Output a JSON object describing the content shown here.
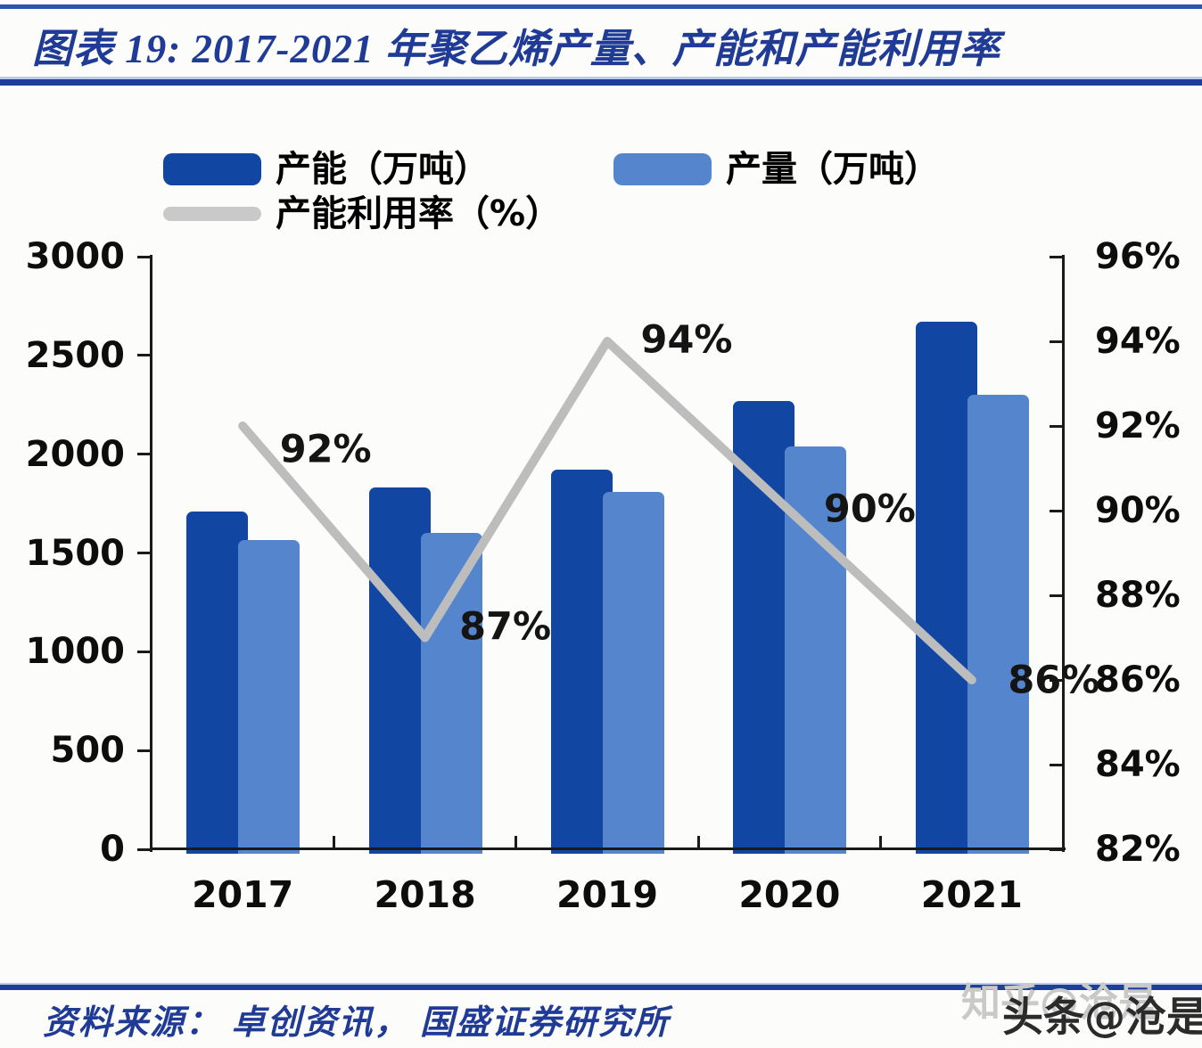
{
  "title": "图表 19:  2017-2021 年聚乙烯产量、产能和产能利用率",
  "source": "资料来源：  卓创资讯，  国盛证券研究所",
  "watermark": {
    "back": "知乎@沧是",
    "front": "头条@沧是"
  },
  "colors": {
    "capacity_bar": "#1246a3",
    "production_bar": "#5586cd",
    "utilization_line": "#bdbdbd",
    "heading_blue": "#1f3b96",
    "divider_blue": "#1e3f98",
    "axis_black": "#1a1a1a"
  },
  "chart_data": {
    "type": "bar",
    "subtype": "dual-axis bar + line combo",
    "categories": [
      "2017",
      "2018",
      "2019",
      "2020",
      "2021"
    ],
    "series": [
      {
        "name": "产能（万吨）",
        "type": "bar",
        "axis": "left",
        "color": "#1246a3",
        "values": [
          1710,
          1830,
          1920,
          2270,
          2670
        ]
      },
      {
        "name": "产量（万吨）",
        "type": "bar",
        "axis": "left",
        "color": "#5586cd",
        "values": [
          1565,
          1600,
          1810,
          2040,
          2300
        ]
      },
      {
        "name": "产能利用率（%）",
        "type": "line",
        "axis": "right",
        "color": "#bdbdbd",
        "values": [
          92,
          87,
          94,
          90,
          86
        ],
        "point_labels": [
          "92%",
          "87%",
          "94%",
          "90%",
          "86%"
        ]
      }
    ],
    "left_axis": {
      "min": 0,
      "max": 3000,
      "step": 500,
      "tick_labels": [
        "3000",
        "2500",
        "2000",
        "1500",
        "1000",
        "500",
        "0"
      ]
    },
    "right_axis": {
      "min": 82,
      "max": 96,
      "step": 2,
      "tick_labels": [
        "96%",
        "94%",
        "92%",
        "90%",
        "88%",
        "86%",
        "84%",
        "82%"
      ]
    },
    "grid": false,
    "legend_position": "top-left"
  }
}
